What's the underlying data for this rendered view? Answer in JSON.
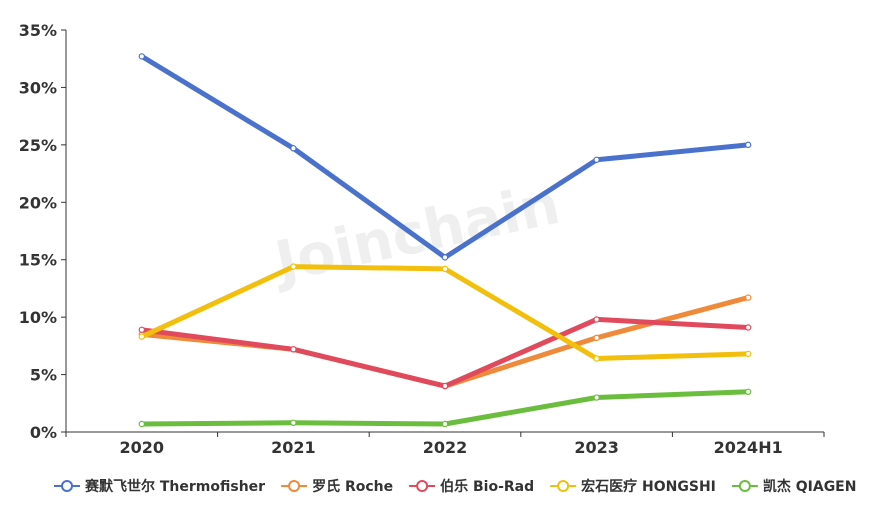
{
  "watermark": "Joinchain",
  "chart_data": {
    "type": "line",
    "categories": [
      "2020",
      "2021",
      "2022",
      "2023",
      "2024H1"
    ],
    "ylim": [
      0,
      35
    ],
    "y_ticks": [
      0,
      5,
      10,
      15,
      20,
      25,
      30,
      35
    ],
    "y_tick_labels": [
      "0%",
      "5%",
      "10%",
      "15%",
      "20%",
      "25%",
      "30%",
      "35%"
    ],
    "grid": false,
    "legend_position": "bottom",
    "series": [
      {
        "name": "赛默飞世尔 Thermofisher",
        "color": "#4a72cc",
        "values": [
          32.7,
          24.7,
          15.2,
          23.7,
          25.0
        ]
      },
      {
        "name": "罗氏 Roche",
        "color": "#ee8a3a",
        "values": [
          8.5,
          7.2,
          4.0,
          8.2,
          11.7
        ]
      },
      {
        "name": "伯乐 Bio-Rad",
        "color": "#e04a5c",
        "values": [
          8.9,
          7.2,
          4.0,
          9.8,
          9.1
        ]
      },
      {
        "name": "宏石医疗 HONGSHI",
        "color": "#f2bf0c",
        "values": [
          8.3,
          14.4,
          14.2,
          6.4,
          6.8
        ]
      },
      {
        "name": "凯杰 QIAGEN",
        "color": "#6bbd3e",
        "values": [
          0.7,
          0.8,
          0.7,
          3.0,
          3.5
        ]
      }
    ]
  }
}
